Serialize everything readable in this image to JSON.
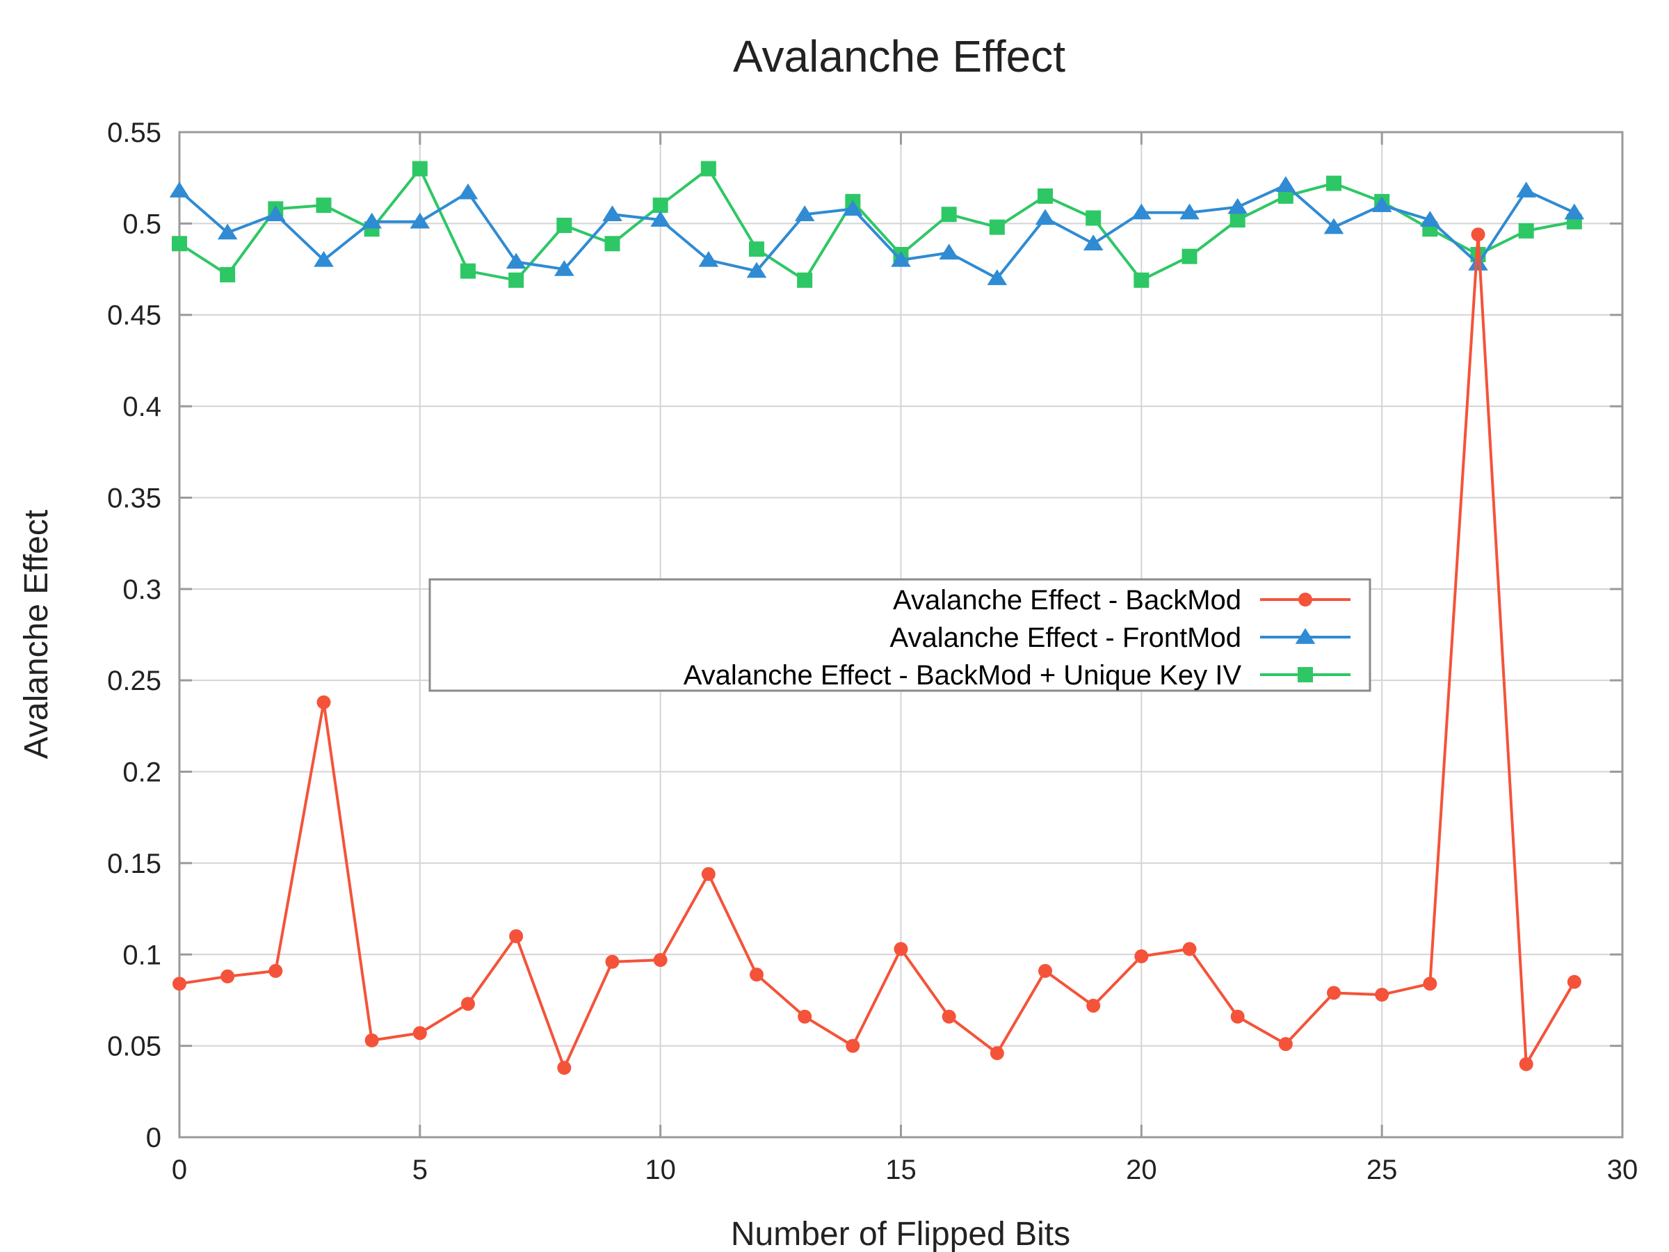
{
  "chart_data": {
    "type": "line",
    "title": "Avalanche Effect",
    "xlabel": "Number of Flipped Bits",
    "ylabel": "Avalanche Effect",
    "xlim": [
      0,
      30
    ],
    "ylim": [
      0,
      0.55
    ],
    "xticks": [
      0,
      5,
      10,
      15,
      20,
      25,
      30
    ],
    "xtick_labels": [
      "0",
      "5",
      "10",
      "15",
      "20",
      "25",
      "30"
    ],
    "yticks": [
      0,
      0.05,
      0.1,
      0.15,
      0.2,
      0.25,
      0.3,
      0.35,
      0.4,
      0.45,
      0.5,
      0.55
    ],
    "ytick_labels": [
      "0",
      "0.05",
      "0.1",
      "0.15",
      "0.2",
      "0.25",
      "0.3",
      "0.35",
      "0.4",
      "0.45",
      "0.5",
      "0.55"
    ],
    "grid": true,
    "legend_position": "center",
    "x": [
      0,
      1,
      2,
      3,
      4,
      5,
      6,
      7,
      8,
      9,
      10,
      11,
      12,
      13,
      14,
      15,
      16,
      17,
      18,
      19,
      20,
      21,
      22,
      23,
      24,
      25,
      26,
      27,
      28,
      29
    ],
    "series": [
      {
        "name": "Avalanche Effect - BackMod",
        "color": "#f4533a",
        "marker": "circle",
        "values": [
          0.084,
          0.088,
          0.091,
          0.238,
          0.053,
          0.057,
          0.073,
          0.11,
          0.038,
          0.096,
          0.097,
          0.144,
          0.089,
          0.066,
          0.05,
          0.103,
          0.066,
          0.046,
          0.091,
          0.072,
          0.099,
          0.103,
          0.066,
          0.051,
          0.079,
          0.078,
          0.084,
          0.494,
          0.04,
          0.085
        ]
      },
      {
        "name": "Avalanche Effect - FrontMod",
        "color": "#2f8bd3",
        "marker": "triangle",
        "values": [
          0.518,
          0.495,
          0.505,
          0.48,
          0.501,
          0.501,
          0.517,
          0.479,
          0.475,
          0.505,
          0.502,
          0.48,
          0.474,
          0.505,
          0.508,
          0.48,
          0.484,
          0.47,
          0.503,
          0.489,
          0.506,
          0.506,
          0.509,
          0.521,
          0.498,
          0.51,
          0.502,
          0.478,
          0.518,
          0.506
        ]
      },
      {
        "name": "Avalanche Effect - BackMod + Unique Key  IV",
        "color": "#2ec765",
        "marker": "square",
        "values": [
          0.489,
          0.472,
          0.508,
          0.51,
          0.497,
          0.53,
          0.474,
          0.469,
          0.499,
          0.489,
          0.51,
          0.53,
          0.486,
          0.469,
          0.512,
          0.483,
          0.505,
          0.498,
          0.515,
          0.503,
          0.469,
          0.482,
          0.502,
          0.515,
          0.522,
          0.512,
          0.497,
          0.483,
          0.496,
          0.501
        ]
      }
    ]
  }
}
